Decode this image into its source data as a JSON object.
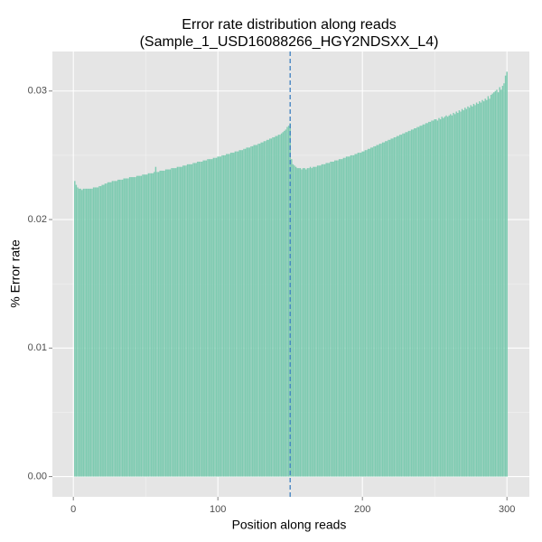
{
  "chart_data": {
    "type": "bar",
    "title": [
      "Error rate distribution along reads",
      "(Sample_1_USD16088266_HGY2NDSXX_L4)"
    ],
    "x_label": "Position along reads",
    "y_label": "% Error rate",
    "color": "#7ecbb1",
    "vline": 150,
    "vline_color": "#3d7fc1",
    "xlim": [
      -14.5,
      315.5
    ],
    "xticks": [
      0,
      100,
      200,
      300
    ],
    "xminor": [
      50,
      150,
      250
    ],
    "ylim": [
      -0.001575,
      0.033075
    ],
    "yticks": [
      {
        "value": 0,
        "label": "0.00"
      },
      {
        "value": 0.01,
        "label": "0.01"
      },
      {
        "value": 0.02,
        "label": "0.02"
      },
      {
        "value": 0.03,
        "label": "0.03"
      }
    ],
    "yminor": [
      0.005,
      0.015,
      0.025
    ],
    "grid": true,
    "x": [
      1,
      2,
      3,
      4,
      5,
      6,
      7,
      8,
      9,
      10,
      11,
      12,
      13,
      14,
      15,
      16,
      17,
      18,
      19,
      20,
      21,
      22,
      23,
      24,
      25,
      26,
      27,
      28,
      29,
      30,
      31,
      32,
      33,
      34,
      35,
      36,
      37,
      38,
      39,
      40,
      41,
      42,
      43,
      44,
      45,
      46,
      47,
      48,
      49,
      50,
      51,
      52,
      53,
      54,
      55,
      56,
      57,
      58,
      59,
      60,
      61,
      62,
      63,
      64,
      65,
      66,
      67,
      68,
      69,
      70,
      71,
      72,
      73,
      74,
      75,
      76,
      77,
      78,
      79,
      80,
      81,
      82,
      83,
      84,
      85,
      86,
      87,
      88,
      89,
      90,
      91,
      92,
      93,
      94,
      95,
      96,
      97,
      98,
      99,
      100,
      101,
      102,
      103,
      104,
      105,
      106,
      107,
      108,
      109,
      110,
      111,
      112,
      113,
      114,
      115,
      116,
      117,
      118,
      119,
      120,
      121,
      122,
      123,
      124,
      125,
      126,
      127,
      128,
      129,
      130,
      131,
      132,
      133,
      134,
      135,
      136,
      137,
      138,
      139,
      140,
      141,
      142,
      143,
      144,
      145,
      146,
      147,
      148,
      149,
      150,
      151,
      152,
      153,
      154,
      155,
      156,
      157,
      158,
      159,
      160,
      161,
      162,
      163,
      164,
      165,
      166,
      167,
      168,
      169,
      170,
      171,
      172,
      173,
      174,
      175,
      176,
      177,
      178,
      179,
      180,
      181,
      182,
      183,
      184,
      185,
      186,
      187,
      188,
      189,
      190,
      191,
      192,
      193,
      194,
      195,
      196,
      197,
      198,
      199,
      200,
      201,
      202,
      203,
      204,
      205,
      206,
      207,
      208,
      209,
      210,
      211,
      212,
      213,
      214,
      215,
      216,
      217,
      218,
      219,
      220,
      221,
      222,
      223,
      224,
      225,
      226,
      227,
      228,
      229,
      230,
      231,
      232,
      233,
      234,
      235,
      236,
      237,
      238,
      239,
      240,
      241,
      242,
      243,
      244,
      245,
      246,
      247,
      248,
      249,
      250,
      251,
      252,
      253,
      254,
      255,
      256,
      257,
      258,
      259,
      260,
      261,
      262,
      263,
      264,
      265,
      266,
      267,
      268,
      269,
      270,
      271,
      272,
      273,
      274,
      275,
      276,
      277,
      278,
      279,
      280,
      281,
      282,
      283,
      284,
      285,
      286,
      287,
      288,
      289,
      290,
      291,
      292,
      293,
      294,
      295,
      296,
      297,
      298,
      299,
      300
    ],
    "values": [
      0.023,
      0.0227,
      0.0225,
      0.0224,
      0.0224,
      0.0223,
      0.0224,
      0.0224,
      0.0224,
      0.0224,
      0.0224,
      0.0224,
      0.0224,
      0.0225,
      0.0225,
      0.0225,
      0.0225,
      0.0226,
      0.0226,
      0.0227,
      0.0227,
      0.0228,
      0.0228,
      0.0229,
      0.0229,
      0.0229,
      0.023,
      0.023,
      0.023,
      0.023,
      0.0231,
      0.0231,
      0.0231,
      0.0231,
      0.0232,
      0.0232,
      0.0232,
      0.0232,
      0.0233,
      0.0233,
      0.0233,
      0.0233,
      0.0233,
      0.0234,
      0.0234,
      0.0234,
      0.0234,
      0.0235,
      0.0235,
      0.0235,
      0.0235,
      0.0236,
      0.0236,
      0.0236,
      0.0236,
      0.0237,
      0.0241,
      0.0237,
      0.0237,
      0.0238,
      0.0238,
      0.0238,
      0.0238,
      0.0239,
      0.0239,
      0.0239,
      0.0239,
      0.024,
      0.024,
      0.024,
      0.024,
      0.0241,
      0.0241,
      0.0241,
      0.0241,
      0.0242,
      0.0242,
      0.0242,
      0.0243,
      0.0243,
      0.0243,
      0.0243,
      0.0244,
      0.0244,
      0.0244,
      0.0245,
      0.0245,
      0.0245,
      0.0245,
      0.0246,
      0.0246,
      0.0246,
      0.0247,
      0.0247,
      0.0247,
      0.0247,
      0.0248,
      0.0248,
      0.0248,
      0.0249,
      0.0249,
      0.0249,
      0.025,
      0.025,
      0.025,
      0.0251,
      0.0251,
      0.0251,
      0.0252,
      0.0252,
      0.0252,
      0.0253,
      0.0253,
      0.0253,
      0.0254,
      0.0254,
      0.0254,
      0.0255,
      0.0255,
      0.0256,
      0.0256,
      0.0256,
      0.0257,
      0.0257,
      0.0258,
      0.0258,
      0.0258,
      0.0259,
      0.0259,
      0.026,
      0.026,
      0.0261,
      0.0261,
      0.0262,
      0.0262,
      0.0263,
      0.0263,
      0.0264,
      0.0264,
      0.0265,
      0.0265,
      0.0266,
      0.0266,
      0.0267,
      0.0268,
      0.0269,
      0.027,
      0.0272,
      0.0273,
      0.0275,
      0.0247,
      0.0243,
      0.0242,
      0.0241,
      0.024,
      0.024,
      0.024,
      0.0239,
      0.024,
      0.024,
      0.0239,
      0.024,
      0.024,
      0.0241,
      0.024,
      0.0241,
      0.0241,
      0.0241,
      0.0242,
      0.0242,
      0.0242,
      0.0243,
      0.0243,
      0.0243,
      0.0244,
      0.0244,
      0.0244,
      0.0245,
      0.0245,
      0.0245,
      0.0246,
      0.0246,
      0.0246,
      0.0247,
      0.0247,
      0.0247,
      0.0248,
      0.0248,
      0.0249,
      0.0249,
      0.0249,
      0.025,
      0.025,
      0.025,
      0.0251,
      0.0251,
      0.0252,
      0.0252,
      0.0252,
      0.0253,
      0.0253,
      0.0254,
      0.0254,
      0.0255,
      0.0255,
      0.0256,
      0.0256,
      0.0257,
      0.0257,
      0.0258,
      0.0258,
      0.0259,
      0.0259,
      0.026,
      0.026,
      0.0261,
      0.0261,
      0.0262,
      0.0262,
      0.0263,
      0.0263,
      0.0264,
      0.0264,
      0.0265,
      0.0265,
      0.0266,
      0.0266,
      0.0267,
      0.0267,
      0.0268,
      0.0268,
      0.0269,
      0.0269,
      0.027,
      0.027,
      0.0271,
      0.0271,
      0.0272,
      0.0272,
      0.0273,
      0.0273,
      0.0274,
      0.0274,
      0.0275,
      0.0275,
      0.0276,
      0.0276,
      0.0277,
      0.0277,
      0.0278,
      0.0278,
      0.0277,
      0.0279,
      0.0278,
      0.028,
      0.0279,
      0.028,
      0.0281,
      0.028,
      0.0281,
      0.0282,
      0.0281,
      0.0283,
      0.0282,
      0.0284,
      0.0283,
      0.0285,
      0.0284,
      0.0286,
      0.0285,
      0.0287,
      0.0286,
      0.0288,
      0.0287,
      0.0289,
      0.0288,
      0.029,
      0.0289,
      0.0291,
      0.029,
      0.0292,
      0.0291,
      0.0293,
      0.0292,
      0.0294,
      0.0293,
      0.0296,
      0.0294,
      0.0297,
      0.0298,
      0.0299,
      0.03,
      0.0301,
      0.0299,
      0.0303,
      0.0301,
      0.0304,
      0.0306,
      0.0312,
      0.0315
    ]
  }
}
